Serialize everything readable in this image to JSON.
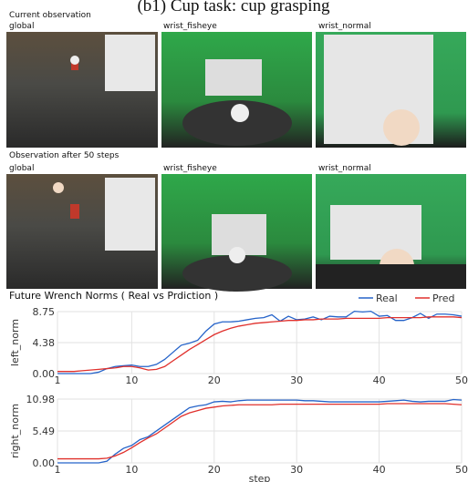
{
  "figure_title": "(b1) Cup task: cup grasping",
  "sections": [
    {
      "heading": "Current observation",
      "images": [
        {
          "label": "global"
        },
        {
          "label": "wrist_fisheye"
        },
        {
          "label": "wrist_normal"
        }
      ]
    },
    {
      "heading": "Observation after 50 steps",
      "images": [
        {
          "label": "global"
        },
        {
          "label": "wrist_fisheye"
        },
        {
          "label": "wrist_normal"
        }
      ]
    }
  ],
  "chart_data": [
    {
      "type": "line",
      "title": "Future Wrench Norms ( Real vs Prdiction )",
      "ylabel": "left_norm",
      "grid": true,
      "legend": "upper right",
      "x": [
        1,
        2,
        3,
        4,
        5,
        6,
        7,
        8,
        9,
        10,
        11,
        12,
        13,
        14,
        15,
        16,
        17,
        18,
        19,
        20,
        21,
        22,
        23,
        24,
        25,
        26,
        27,
        28,
        29,
        30,
        31,
        32,
        33,
        34,
        35,
        36,
        37,
        38,
        39,
        40,
        41,
        42,
        43,
        44,
        45,
        46,
        47,
        48,
        49,
        50
      ],
      "xlim": [
        1,
        50
      ],
      "xticks": [
        1,
        10,
        20,
        30,
        40,
        50
      ],
      "ylim": [
        0,
        8.75
      ],
      "yticks": [
        {
          "value": 0,
          "label": "0.00"
        },
        4.38,
        8.75
      ],
      "series": [
        {
          "name": "Real",
          "color": "#2563c9",
          "values": [
            0.0,
            0.0,
            0.0,
            0.0,
            0.0,
            0.2,
            0.7,
            1.0,
            1.1,
            1.2,
            1.0,
            1.0,
            1.3,
            2.0,
            3.0,
            4.0,
            4.3,
            4.7,
            6.0,
            7.0,
            7.3,
            7.3,
            7.4,
            7.6,
            7.8,
            7.9,
            8.3,
            7.4,
            8.1,
            7.6,
            7.7,
            8.0,
            7.6,
            8.1,
            8.0,
            8.0,
            8.8,
            8.7,
            8.8,
            8.1,
            8.2,
            7.5,
            7.5,
            7.9,
            8.5,
            7.8,
            8.4,
            8.4,
            8.3,
            8.1
          ]
        },
        {
          "name": "Pred",
          "color": "#e0302c",
          "values": [
            0.3,
            0.3,
            0.3,
            0.4,
            0.5,
            0.6,
            0.7,
            0.8,
            1.0,
            1.0,
            0.8,
            0.5,
            0.6,
            1.0,
            1.8,
            2.6,
            3.4,
            4.1,
            4.8,
            5.5,
            6.0,
            6.4,
            6.7,
            6.9,
            7.1,
            7.2,
            7.3,
            7.4,
            7.5,
            7.5,
            7.6,
            7.6,
            7.7,
            7.7,
            7.7,
            7.8,
            7.8,
            7.8,
            7.8,
            7.8,
            7.9,
            7.9,
            7.9,
            7.9,
            7.9,
            8.0,
            8.0,
            8.0,
            8.0,
            7.9
          ]
        }
      ]
    },
    {
      "type": "line",
      "ylabel": "right_norm",
      "xlabel": "step",
      "grid": true,
      "x": [
        1,
        2,
        3,
        4,
        5,
        6,
        7,
        8,
        9,
        10,
        11,
        12,
        13,
        14,
        15,
        16,
        17,
        18,
        19,
        20,
        21,
        22,
        23,
        24,
        25,
        26,
        27,
        28,
        29,
        30,
        31,
        32,
        33,
        34,
        35,
        36,
        37,
        38,
        39,
        40,
        41,
        42,
        43,
        44,
        45,
        46,
        47,
        48,
        49,
        50
      ],
      "xlim": [
        1,
        50
      ],
      "xticks": [
        1,
        10,
        20,
        30,
        40,
        50
      ],
      "ylim": [
        0,
        10.98
      ],
      "yticks": [
        {
          "value": 0,
          "label": "0.00"
        },
        5.49,
        10.98
      ],
      "series": [
        {
          "name": "Real",
          "color": "#2563c9",
          "values": [
            0,
            0,
            0,
            0,
            0,
            0,
            0.3,
            1.5,
            2.5,
            3.0,
            4.0,
            4.5,
            5.5,
            6.5,
            7.5,
            8.5,
            9.5,
            9.8,
            10.0,
            10.5,
            10.6,
            10.5,
            10.7,
            10.8,
            10.8,
            10.8,
            10.8,
            10.8,
            10.8,
            10.8,
            10.7,
            10.7,
            10.6,
            10.5,
            10.5,
            10.5,
            10.5,
            10.5,
            10.5,
            10.5,
            10.6,
            10.7,
            10.8,
            10.6,
            10.5,
            10.6,
            10.6,
            10.6,
            10.9,
            10.8
          ]
        },
        {
          "name": "Pred",
          "color": "#e0302c",
          "values": [
            0.7,
            0.7,
            0.7,
            0.7,
            0.7,
            0.7,
            0.8,
            1.2,
            1.8,
            2.6,
            3.5,
            4.3,
            5.0,
            6.0,
            7.0,
            8.0,
            8.6,
            9.0,
            9.4,
            9.6,
            9.8,
            9.9,
            10.0,
            10.0,
            10.0,
            10.0,
            10.0,
            10.1,
            10.1,
            10.1,
            10.1,
            10.1,
            10.1,
            10.1,
            10.1,
            10.1,
            10.1,
            10.1,
            10.1,
            10.1,
            10.2,
            10.2,
            10.2,
            10.2,
            10.2,
            10.2,
            10.2,
            10.2,
            10.1,
            10.0
          ]
        }
      ]
    }
  ]
}
